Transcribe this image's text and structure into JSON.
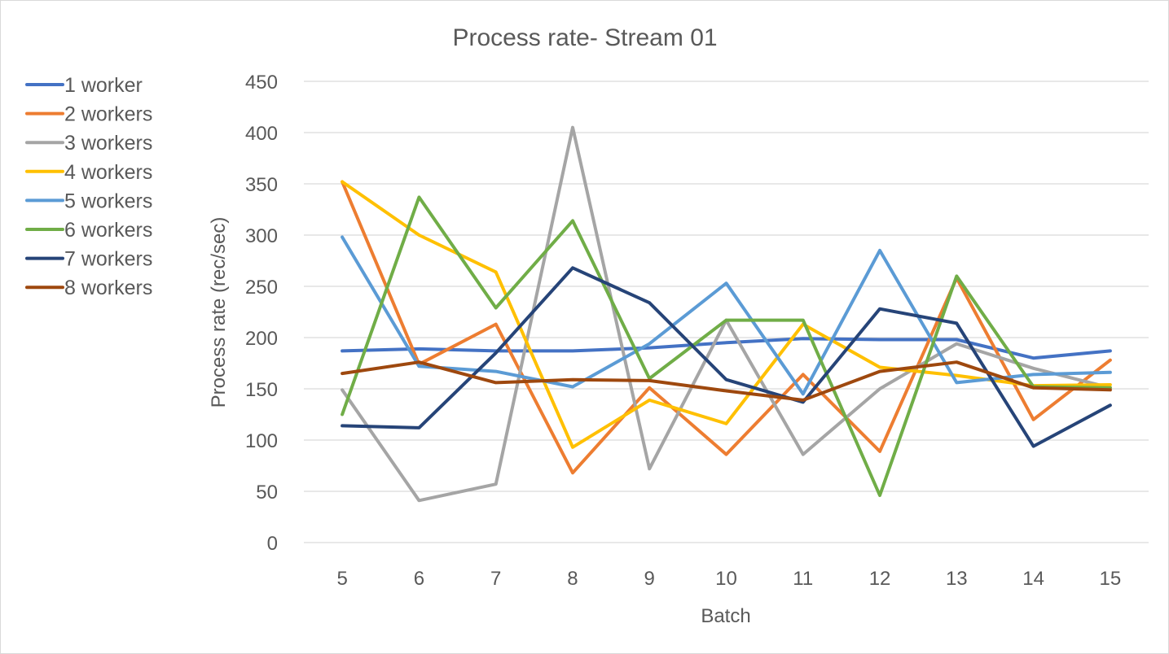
{
  "chart_data": {
    "type": "line",
    "title": "Process rate- Stream 01",
    "xlabel": "Batch",
    "ylabel": "Process rate (rec/sec)",
    "categories": [
      "5",
      "6",
      "7",
      "8",
      "9",
      "10",
      "11",
      "12",
      "13",
      "14",
      "15"
    ],
    "ylim": [
      0,
      450
    ],
    "yticks": [
      "0",
      "50",
      "100",
      "150",
      "200",
      "250",
      "300",
      "350",
      "400",
      "450"
    ],
    "grid": true,
    "legend_position": "left",
    "series": [
      {
        "name": "1 worker",
        "color": "#4472c4",
        "values": [
          187,
          189,
          187,
          187,
          190,
          195,
          199,
          198,
          198,
          180,
          187
        ]
      },
      {
        "name": "2 workers",
        "color": "#ed7d31",
        "values": [
          352,
          174,
          213,
          68,
          151,
          86,
          164,
          89,
          258,
          120,
          178
        ]
      },
      {
        "name": "3 workers",
        "color": "#a5a5a5",
        "values": [
          149,
          41,
          57,
          405,
          72,
          217,
          86,
          150,
          194,
          170,
          151
        ]
      },
      {
        "name": "4 workers",
        "color": "#ffc000",
        "values": [
          352,
          300,
          264,
          93,
          139,
          116,
          213,
          171,
          163,
          153,
          154
        ]
      },
      {
        "name": "5 workers",
        "color": "#5b9bd5",
        "values": [
          298,
          172,
          167,
          152,
          194,
          253,
          145,
          285,
          156,
          164,
          166
        ]
      },
      {
        "name": "6 workers",
        "color": "#70ad47",
        "values": [
          125,
          337,
          229,
          314,
          160,
          217,
          217,
          46,
          260,
          152,
          151
        ]
      },
      {
        "name": "7 workers",
        "color": "#264478",
        "values": [
          114,
          112,
          185,
          268,
          234,
          159,
          137,
          228,
          214,
          94,
          134
        ]
      },
      {
        "name": "8 workers",
        "color": "#9e480e",
        "values": [
          165,
          176,
          156,
          159,
          158,
          148,
          139,
          167,
          176,
          151,
          149
        ]
      }
    ]
  }
}
